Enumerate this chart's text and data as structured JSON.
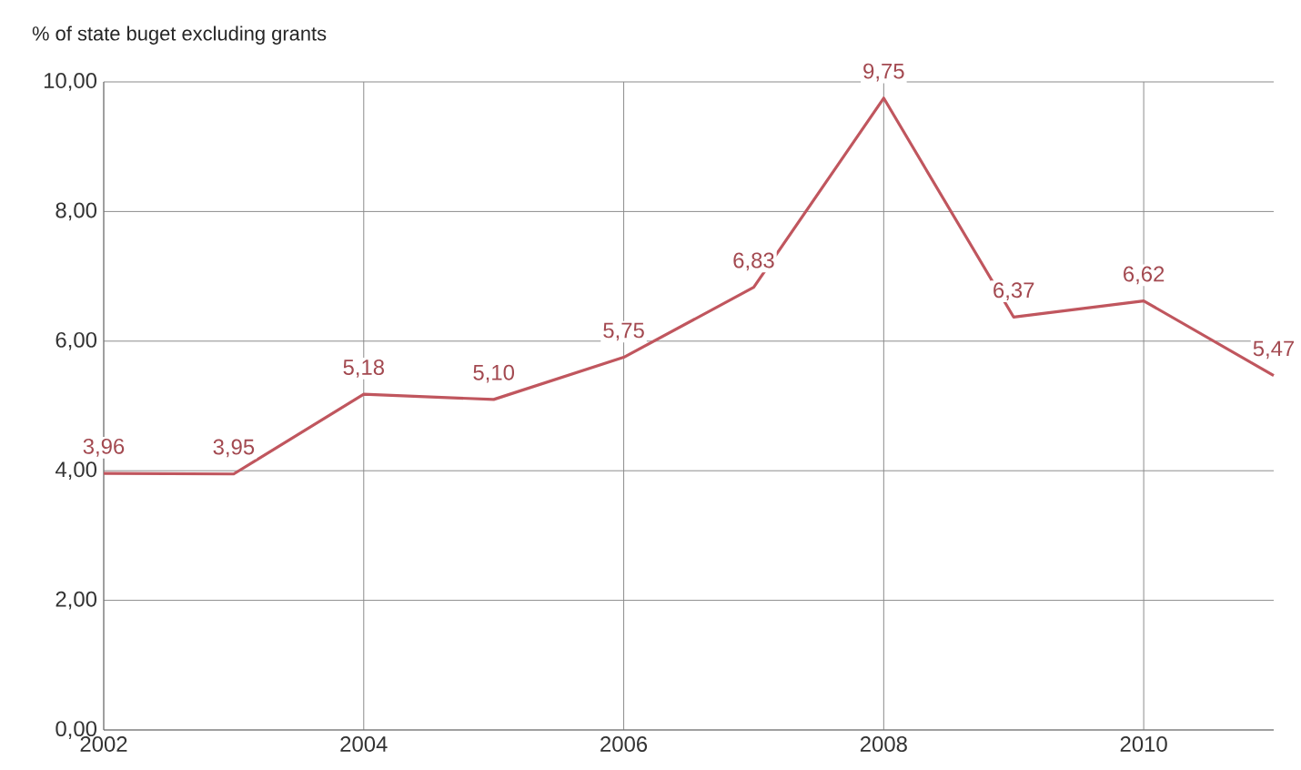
{
  "chart_data": {
    "type": "line",
    "ylabel": "% of state buget excluding grants",
    "x": [
      2002,
      2003,
      2004,
      2005,
      2006,
      2007,
      2008,
      2009,
      2010,
      2011
    ],
    "series": [
      {
        "color": "#c0565e",
        "values": [
          3.96,
          3.95,
          5.18,
          5.1,
          5.75,
          6.83,
          9.75,
          6.37,
          6.62,
          5.47
        ],
        "value_labels": [
          "3,96",
          "3,95",
          "5,18",
          "5,10",
          "5,75",
          "6,83",
          "9,75",
          "6,37",
          "6,62",
          "5,47"
        ]
      }
    ],
    "xlim": [
      2002,
      2011
    ],
    "xticks": [
      2002,
      2004,
      2006,
      2008,
      2010
    ],
    "ylim": [
      0,
      10
    ],
    "yticks": [
      {
        "value": 0,
        "label": "0,00"
      },
      {
        "value": 2,
        "label": "2,00"
      },
      {
        "value": 4,
        "label": "4,00"
      },
      {
        "value": 6,
        "label": "6,00"
      },
      {
        "value": 8,
        "label": "8,00"
      },
      {
        "value": 10,
        "label": "10,00"
      }
    ],
    "grid": true,
    "marker": "none",
    "line_style": "solid"
  }
}
